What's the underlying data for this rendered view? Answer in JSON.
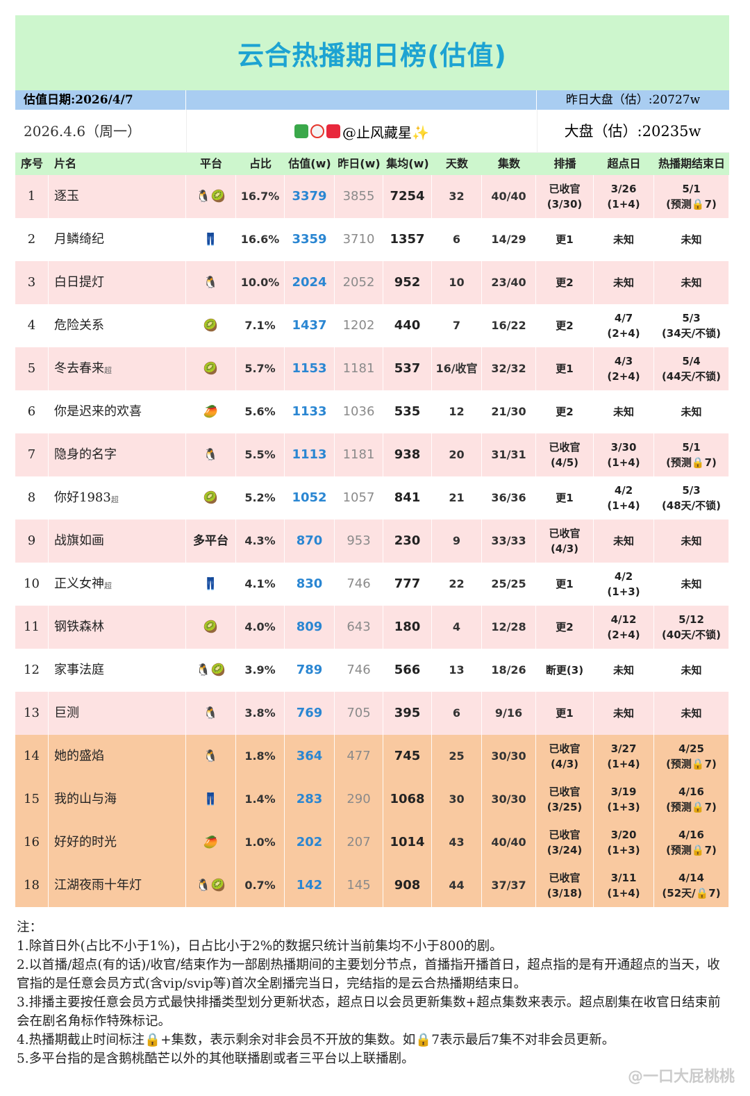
{
  "header": {
    "title": "云合热播期日榜(估值)",
    "date_label": "估值日期:2026/4/7",
    "prev_market": "昨日大盘（估）:20727w",
    "day": "2026.4.6（周一）",
    "author": "@止风藏星✨",
    "market": "大盘（估）:20235w"
  },
  "table": {
    "columns": [
      "序号",
      "片名",
      "平台",
      "占比",
      "估值(w)",
      "昨日(w)",
      "集均(w)",
      "天数",
      "集数",
      "排播",
      "超点日",
      "热播期结束日"
    ],
    "rows": [
      {
        "no": "1",
        "title": "逐玉",
        "platform": "🐧🥝",
        "share": "16.7%",
        "est": "3379",
        "prev": "3855",
        "avg": "7254",
        "days": "32",
        "eps": "40/40",
        "sched": [
          "已收官",
          "(3/30)"
        ],
        "peak": [
          "3/26",
          "(1+4)"
        ],
        "end": [
          "5/1",
          "(预测🔒7)"
        ],
        "bg": "#fde2e2"
      },
      {
        "no": "2",
        "title": "月鳞绮纪",
        "platform": "👖",
        "share": "16.6%",
        "est": "3359",
        "prev": "3710",
        "avg": "1357",
        "days": "6",
        "eps": "14/29",
        "sched": "更1",
        "peak": "未知",
        "end": "未知",
        "bg": "#ffffff"
      },
      {
        "no": "3",
        "title": "白日提灯",
        "platform": "🐧",
        "share": "10.0%",
        "est": "2024",
        "prev": "2052",
        "avg": "952",
        "days": "10",
        "eps": "23/40",
        "sched": "更2",
        "peak": "未知",
        "end": "未知",
        "bg": "#fde2e2"
      },
      {
        "no": "4",
        "title": "危险关系",
        "platform": "🥝",
        "share": "7.1%",
        "est": "1437",
        "prev": "1202",
        "avg": "440",
        "days": "7",
        "eps": "16/22",
        "sched": "更2",
        "peak": [
          "4/7",
          "(2+4)"
        ],
        "end": [
          "5/3",
          "(34天/不锁)"
        ],
        "bg": "#ffffff"
      },
      {
        "no": "5",
        "title": "冬去春来",
        "tag": "超",
        "platform": "🥝",
        "share": "5.7%",
        "est": "1153",
        "prev": "1181",
        "avg": "537",
        "days": "16/收官",
        "eps": "32/32",
        "sched": "更1",
        "peak": [
          "4/3",
          "(2+4)"
        ],
        "end": [
          "5/4",
          "(44天/不锁)"
        ],
        "bg": "#fde2e2"
      },
      {
        "no": "6",
        "title": "你是迟来的欢喜",
        "platform": "🥭",
        "share": "5.6%",
        "est": "1133",
        "prev": "1036",
        "avg": "535",
        "days": "12",
        "eps": "21/30",
        "sched": "更2",
        "peak": "未知",
        "end": "未知",
        "bg": "#ffffff"
      },
      {
        "no": "7",
        "title": "隐身的名字",
        "platform": "🐧",
        "share": "5.5%",
        "est": "1113",
        "prev": "1181",
        "avg": "938",
        "days": "20",
        "eps": "31/31",
        "sched": [
          "已收官",
          "(4/5)"
        ],
        "peak": [
          "3/30",
          "(1+4)"
        ],
        "end": [
          "5/1",
          "(预测🔒7)"
        ],
        "bg": "#fde2e2"
      },
      {
        "no": "8",
        "title": "你好1983",
        "tag": "超",
        "platform": "🥝",
        "share": "5.2%",
        "est": "1052",
        "prev": "1057",
        "avg": "841",
        "days": "21",
        "eps": "36/36",
        "sched": "更1",
        "peak": [
          "4/2",
          "(1+4)"
        ],
        "end": [
          "5/3",
          "(48天/不锁)"
        ],
        "bg": "#ffffff"
      },
      {
        "no": "9",
        "title": "战旗如画",
        "platform": "多平台",
        "share": "4.3%",
        "est": "870",
        "prev": "953",
        "avg": "230",
        "days": "9",
        "eps": "33/33",
        "sched": [
          "已收官",
          "(4/3)"
        ],
        "peak": "未知",
        "end": "未知",
        "bg": "#fde2e2"
      },
      {
        "no": "10",
        "title": "正义女神",
        "tag": "超",
        "platform": "👖",
        "share": "4.1%",
        "est": "830",
        "prev": "746",
        "avg": "777",
        "days": "22",
        "eps": "25/25",
        "sched": "更1",
        "peak": [
          "4/2",
          "(1+3)"
        ],
        "end": "未知",
        "bg": "#ffffff"
      },
      {
        "no": "11",
        "title": "钢铁森林",
        "platform": "🥝",
        "share": "4.0%",
        "est": "809",
        "prev": "643",
        "avg": "180",
        "days": "4",
        "eps": "12/28",
        "sched": "更2",
        "peak": [
          "4/12",
          "(2+4)"
        ],
        "end": [
          "5/12",
          "(40天/不锁)"
        ],
        "bg": "#fde2e2"
      },
      {
        "no": "12",
        "title": "家事法庭",
        "platform": "🐧🥝",
        "share": "3.9%",
        "est": "789",
        "prev": "746",
        "avg": "566",
        "days": "13",
        "eps": "18/26",
        "sched": "断更(3)",
        "peak": "未知",
        "end": "未知",
        "bg": "#ffffff"
      },
      {
        "no": "13",
        "title": "巨测",
        "platform": "🐧",
        "share": "3.8%",
        "est": "769",
        "prev": "705",
        "avg": "395",
        "days": "6",
        "eps": "9/16",
        "sched": "更1",
        "peak": "未知",
        "end": "未知",
        "bg": "#fde2e2"
      },
      {
        "no": "14",
        "title": "她的盛焰",
        "platform": "🐧",
        "share": "1.8%",
        "est": "364",
        "prev": "477",
        "avg": "745",
        "days": "25",
        "eps": "30/30",
        "sched": [
          "已收官",
          "(4/3)"
        ],
        "peak": [
          "3/27",
          "(1+4)"
        ],
        "end": [
          "4/25",
          "(预测🔒7)"
        ],
        "bg": "#f9c9a0"
      },
      {
        "no": "15",
        "title": "我的山与海",
        "platform": "👖",
        "share": "1.4%",
        "est": "283",
        "prev": "290",
        "avg": "1068",
        "days": "30",
        "eps": "30/30",
        "sched": [
          "已收官",
          "(3/25)"
        ],
        "peak": [
          "3/19",
          "(1+3)"
        ],
        "end": [
          "4/16",
          "(预测🔒7)"
        ],
        "bg": "#f9c9a0"
      },
      {
        "no": "16",
        "title": "好好的时光",
        "platform": "🥭",
        "share": "1.0%",
        "est": "202",
        "prev": "207",
        "avg": "1014",
        "days": "43",
        "eps": "40/40",
        "sched": [
          "已收官",
          "(3/24)"
        ],
        "peak": [
          "3/20",
          "(1+3)"
        ],
        "end": [
          "4/16",
          "(预测🔒7)"
        ],
        "bg": "#f9c9a0"
      },
      {
        "no": "18",
        "title": "江湖夜雨十年灯",
        "platform": "🐧🥝",
        "share": "0.7%",
        "est": "142",
        "prev": "145",
        "avg": "908",
        "days": "44",
        "eps": "37/37",
        "sched": [
          "已收官",
          "(3/18)"
        ],
        "peak": [
          "3/11",
          "(1+4)"
        ],
        "end": [
          "4/14",
          "(52天/🔒7)"
        ],
        "bg": "#f9c9a0"
      }
    ]
  },
  "notes": [
    "注：",
    "1.除首日外(占比不小于1%)，日占比小于2%的数据只统计当前集均不小于800的剧。",
    "2.以首播/超点(有的话)/收官/结束作为一部剧热播期间的主要划分节点，首播指开播首日，超点指的是有开通超点的当天，收官指的是任意会员方式(含vip/svip等)首次全剧播完当日，完结指的是云合热播期结束日。",
    "3.排播主要按任意会员方式最快排播类型划分更新状态，超点日以会员更新集数+超点集数来表示。超点剧集在收官日结束前会在剧名角标作特殊标记。",
    "4.热播期截止时间标注🔒+集数，表示剩余对非会员不开放的集数。如🔒7表示最后7集不对非会员更新。",
    "5.多平台指的是含鹅桃酷芒以外的其他联播剧或者三平台以上联播剧。"
  ],
  "watermark": "@一口大屁桃桃"
}
